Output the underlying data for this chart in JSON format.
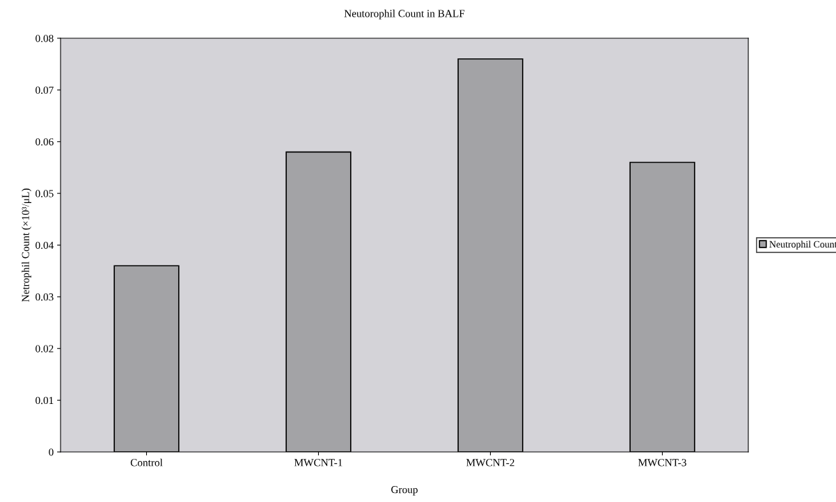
{
  "chart_data": {
    "type": "bar",
    "title": "Neutorophil Count in BALF",
    "xlabel": "Group",
    "ylabel": "Netrophil Count (×10³/μL)",
    "categories": [
      "Control",
      "MWCNT-1",
      "MWCNT-2",
      "MWCNT-3"
    ],
    "series": [
      {
        "name": "Neutrophil Count",
        "color": "#a3a3a6",
        "values": [
          0.036,
          0.058,
          0.076,
          0.056
        ]
      }
    ],
    "ylim": [
      0,
      0.08
    ],
    "yticks": [
      {
        "value": 0,
        "label": "0"
      },
      0.01,
      0.02,
      0.03,
      0.04,
      0.05,
      0.06,
      0.07,
      0.08
    ],
    "grid": false,
    "legend": "right"
  }
}
